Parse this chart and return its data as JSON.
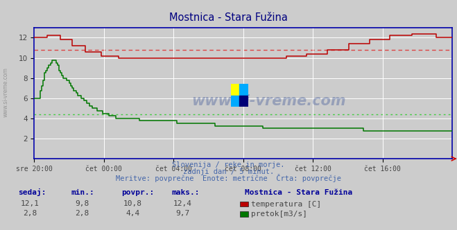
{
  "title": "Mostnica - Stara Fužina",
  "title_color": "#000080",
  "bg_color": "#cccccc",
  "plot_bg_color": "#cccccc",
  "grid_color": "#ffffff",
  "xlabel_ticks": [
    "sre 20:00",
    "čet 00:00",
    "čet 04:00",
    "čet 08:00",
    "čet 12:00",
    "čet 16:00"
  ],
  "ylim": [
    0,
    13
  ],
  "yticks": [
    2,
    4,
    6,
    8,
    10,
    12
  ],
  "temp_color": "#bb0000",
  "flow_color": "#007700",
  "avg_temp_color": "#dd4444",
  "avg_flow_color": "#44cc44",
  "avg_temp": 10.8,
  "avg_flow": 4.4,
  "watermark_color": "#1a3a8a",
  "footer_line1": "Slovenija / reke in morje.",
  "footer_line2": "zadnji dan / 5 minut.",
  "footer_line3": "Meritve: povprečne  Enote: metrične  Črta: povprečje",
  "footer_color": "#4466aa",
  "table_headers": [
    "sedaj:",
    "min.:",
    "povpr.:",
    "maks.:"
  ],
  "table_header_color": "#000099",
  "row1": [
    "12,1",
    "9,8",
    "10,8",
    "12,4"
  ],
  "row2": [
    "2,8",
    "2,8",
    "4,4",
    "9,7"
  ],
  "legend_title": "Mostnica - Stara Fužina",
  "legend_items": [
    "temperatura [C]",
    "pretok[m3/s]"
  ],
  "legend_colors": [
    "#bb0000",
    "#007700"
  ],
  "axis_color": "#0000cc",
  "border_color": "#0000aa",
  "tick_color": "#444444",
  "num_points": 288,
  "left_label": "www.si-vreme.com"
}
